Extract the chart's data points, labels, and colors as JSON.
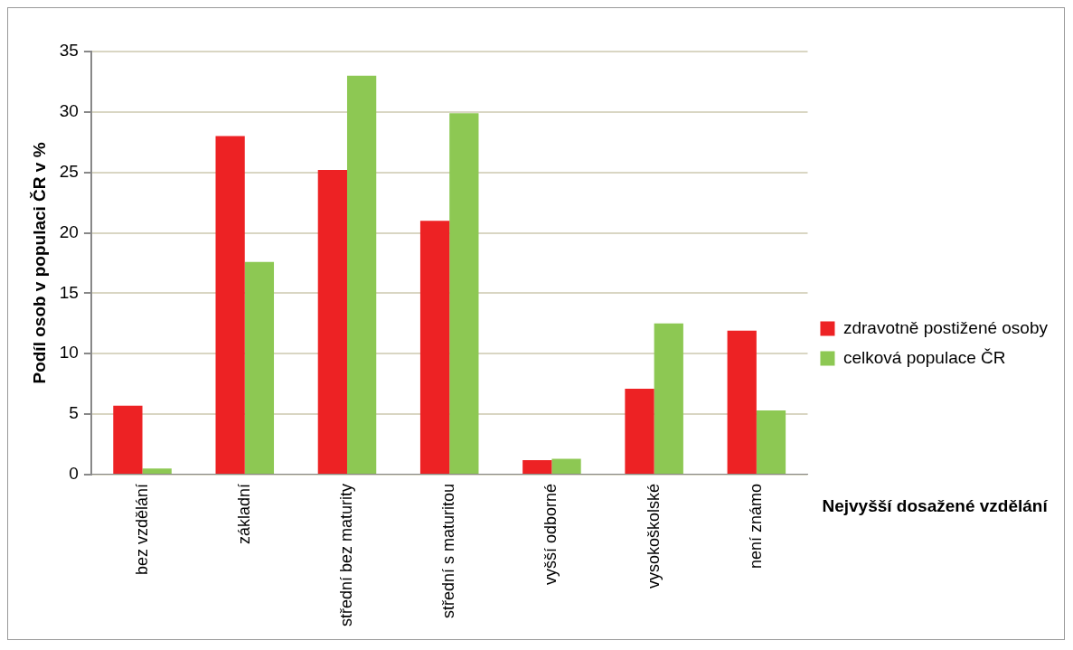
{
  "chart_data": {
    "type": "bar",
    "xlabel": "Nejvyšší dosažené vzdělání",
    "ylabel": "Podíl osob v populaci ČR v %",
    "categories": [
      "bez vzdělání",
      "základní",
      "střední bez maturity",
      "střední s maturitou",
      "vyšší odborné",
      "vysokoškolské",
      "není známo"
    ],
    "series": [
      {
        "name": "zdravotně postižené osoby",
        "color": "#ed2224",
        "values": [
          5.7,
          28.0,
          25.2,
          21.0,
          1.2,
          7.1,
          11.9
        ]
      },
      {
        "name": "celková populace ČR",
        "color": "#8dc853",
        "values": [
          0.5,
          17.6,
          33.0,
          29.9,
          1.3,
          12.5,
          5.3
        ]
      }
    ],
    "ylim": [
      0,
      35
    ],
    "yticks": [
      0,
      5,
      10,
      15,
      20,
      25,
      30,
      35
    ],
    "grid": "y",
    "legend": "right"
  }
}
